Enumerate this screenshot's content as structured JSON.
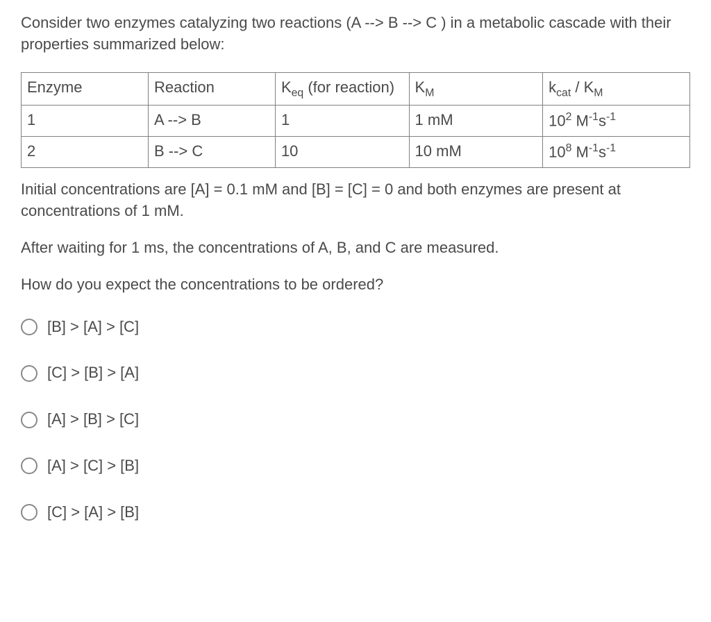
{
  "intro": "Consider two enzymes catalyzing two reactions (A --> B --> C ) in a metabolic cascade with their properties summarized below:",
  "table": {
    "headers": {
      "enzyme": "Enzyme",
      "reaction": "Reaction",
      "keq_prefix": "K",
      "keq_sub": "eq",
      "keq_suffix": " (for reaction)",
      "km_prefix": "K",
      "km_sub": "M",
      "kcat_prefix": "k",
      "kcat_sub1": "cat",
      "kcat_mid": " / K",
      "kcat_sub2": "M"
    },
    "rows": [
      {
        "enzyme": "1",
        "reaction": "A --> B",
        "keq": "1",
        "km": "1 mM",
        "kcat_base": "10",
        "kcat_exp": "2",
        "kcat_unit1": " M",
        "kcat_exp2": "-1",
        "kcat_unit2": "s",
        "kcat_exp3": "-1"
      },
      {
        "enzyme": "2",
        "reaction": "B --> C",
        "keq": "10",
        "km": "10 mM",
        "kcat_base": "10",
        "kcat_exp": "8",
        "kcat_unit1": " M",
        "kcat_exp2": "-1",
        "kcat_unit2": "s",
        "kcat_exp3": "-1"
      }
    ]
  },
  "para1": "Initial concentrations are [A] = 0.1 mM and [B] = [C] = 0 and both enzymes are present at concentrations of 1 mM.",
  "para2": "After waiting for 1 ms, the concentrations of A, B, and C are measured.",
  "para3": "How do you expect the concentrations to be ordered?",
  "options": [
    "[B] > [A] > [C]",
    "[C] > [B] > [A]",
    "[A] > [B] > [C]",
    "[A] > [C] > [B]",
    "[C] > [A] > [B]"
  ]
}
